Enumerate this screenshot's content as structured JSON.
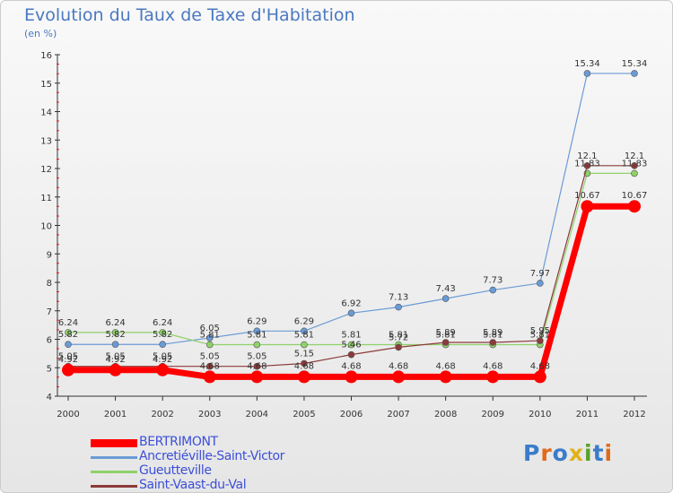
{
  "title": "Evolution du Taux de Taxe d'Habitation",
  "unit_label": "(en %)",
  "logo": {
    "text": "Proxiti",
    "letter_colors": [
      "#3a7cc9",
      "#e06a1a",
      "#3a7cc9",
      "#e0b21a",
      "#5aa02c",
      "#3a7cc9",
      "#e06a1a"
    ]
  },
  "chart_data": {
    "type": "line",
    "title": "Evolution du Taux de Taxe d'Habitation",
    "ylabel": "(en %)",
    "xlabel": "",
    "x": [
      "2000",
      "2001",
      "2002",
      "2003",
      "2004",
      "2005",
      "2006",
      "2007",
      "2008",
      "2009",
      "2010",
      "2011",
      "2012"
    ],
    "ylim": [
      4,
      16
    ],
    "yticks": [
      "4",
      "5",
      "6",
      "7",
      "8",
      "9",
      "10",
      "11",
      "12",
      "13",
      "14",
      "15",
      "16"
    ],
    "grid": false,
    "legend_position": "bottom-left",
    "series": [
      {
        "name": "BERTRIMONT",
        "color": "#ff0000",
        "values": [
          4.92,
          4.92,
          4.92,
          4.68,
          4.68,
          4.68,
          4.68,
          4.68,
          4.68,
          4.68,
          4.68,
          10.67,
          10.67
        ],
        "labels": [
          "4.92",
          "4.92",
          "4.92",
          "4.68",
          "4.68",
          "4.68",
          "4.68",
          "4.68",
          "4.68",
          "4.68",
          "4.68",
          "10.67",
          "10.67"
        ]
      },
      {
        "name": "Ancretiéville-Saint-Victor",
        "color": "#6a9bd6",
        "values": [
          5.82,
          5.82,
          5.82,
          6.05,
          6.29,
          6.29,
          6.92,
          7.13,
          7.43,
          7.73,
          7.97,
          15.34,
          15.34
        ],
        "labels": [
          "5.82",
          "5.82",
          "5.82",
          "6.05",
          "6.29",
          "6.29",
          "6.92",
          "7.13",
          "7.43",
          "7.73",
          "7.97",
          "15.34",
          "15.34"
        ]
      },
      {
        "name": "Gueutteville",
        "color": "#8fd16a",
        "values": [
          6.24,
          6.24,
          6.24,
          5.81,
          5.81,
          5.81,
          5.81,
          5.81,
          5.81,
          5.81,
          5.81,
          11.83,
          11.83
        ],
        "labels": [
          "6.24",
          "6.24",
          "6.24",
          "5.81",
          "5.81",
          "5.81",
          "5.81",
          "5.81",
          "5.81",
          "5.81",
          "5.81",
          "11.83",
          "11.83"
        ]
      },
      {
        "name": "Saint-Vaast-du-Val",
        "color": "#8c3a3a",
        "values": [
          5.05,
          5.05,
          5.05,
          5.05,
          5.05,
          5.15,
          5.46,
          5.72,
          5.89,
          5.89,
          5.95,
          12.1,
          12.1
        ],
        "labels": [
          "5.05",
          "5.05",
          "5.05",
          "5.05",
          "5.05",
          "5.15",
          "5.46",
          "5.72",
          "5.89",
          "5.89",
          "5.95",
          "12.1",
          "12.1"
        ]
      }
    ]
  }
}
